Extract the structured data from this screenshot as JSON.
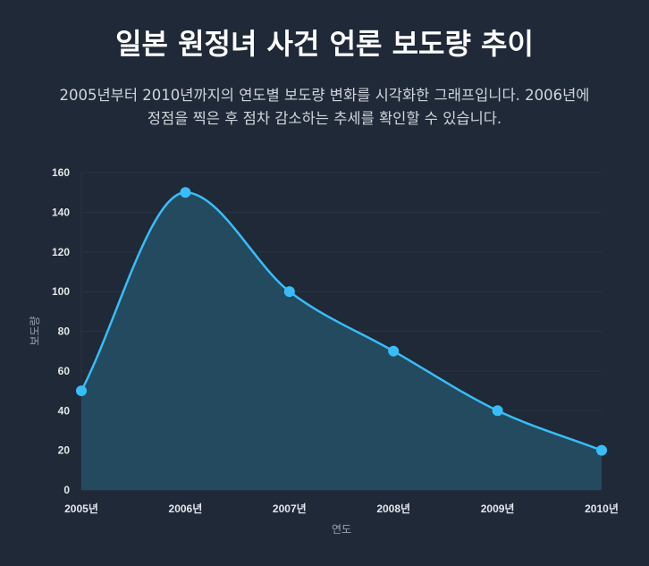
{
  "title": "일본 원정녀 사건 언론 보도량 추이",
  "subtitle_line1": "2005년부터 2010년까지의 연도별 보도량 변화를 시각화한 그래프입니다. 2006년에",
  "subtitle_line2": "정점을 찍은 후 점차 감소하는 추세를 확인할 수 있습니다.",
  "chart_data": {
    "type": "area",
    "categories": [
      "2005년",
      "2006년",
      "2007년",
      "2008년",
      "2009년",
      "2010년"
    ],
    "values": [
      50,
      150,
      100,
      70,
      40,
      20
    ],
    "xlabel": "연도",
    "ylabel": "보도량",
    "ylim": [
      0,
      160
    ],
    "yticks": [
      "0",
      "20",
      "40",
      "60",
      "80",
      "100",
      "120",
      "140",
      "160"
    ],
    "grid": true,
    "smooth": true,
    "colors": {
      "line": "#38bdf8",
      "fill": "#244a5f",
      "grid": "#2a3544"
    }
  }
}
